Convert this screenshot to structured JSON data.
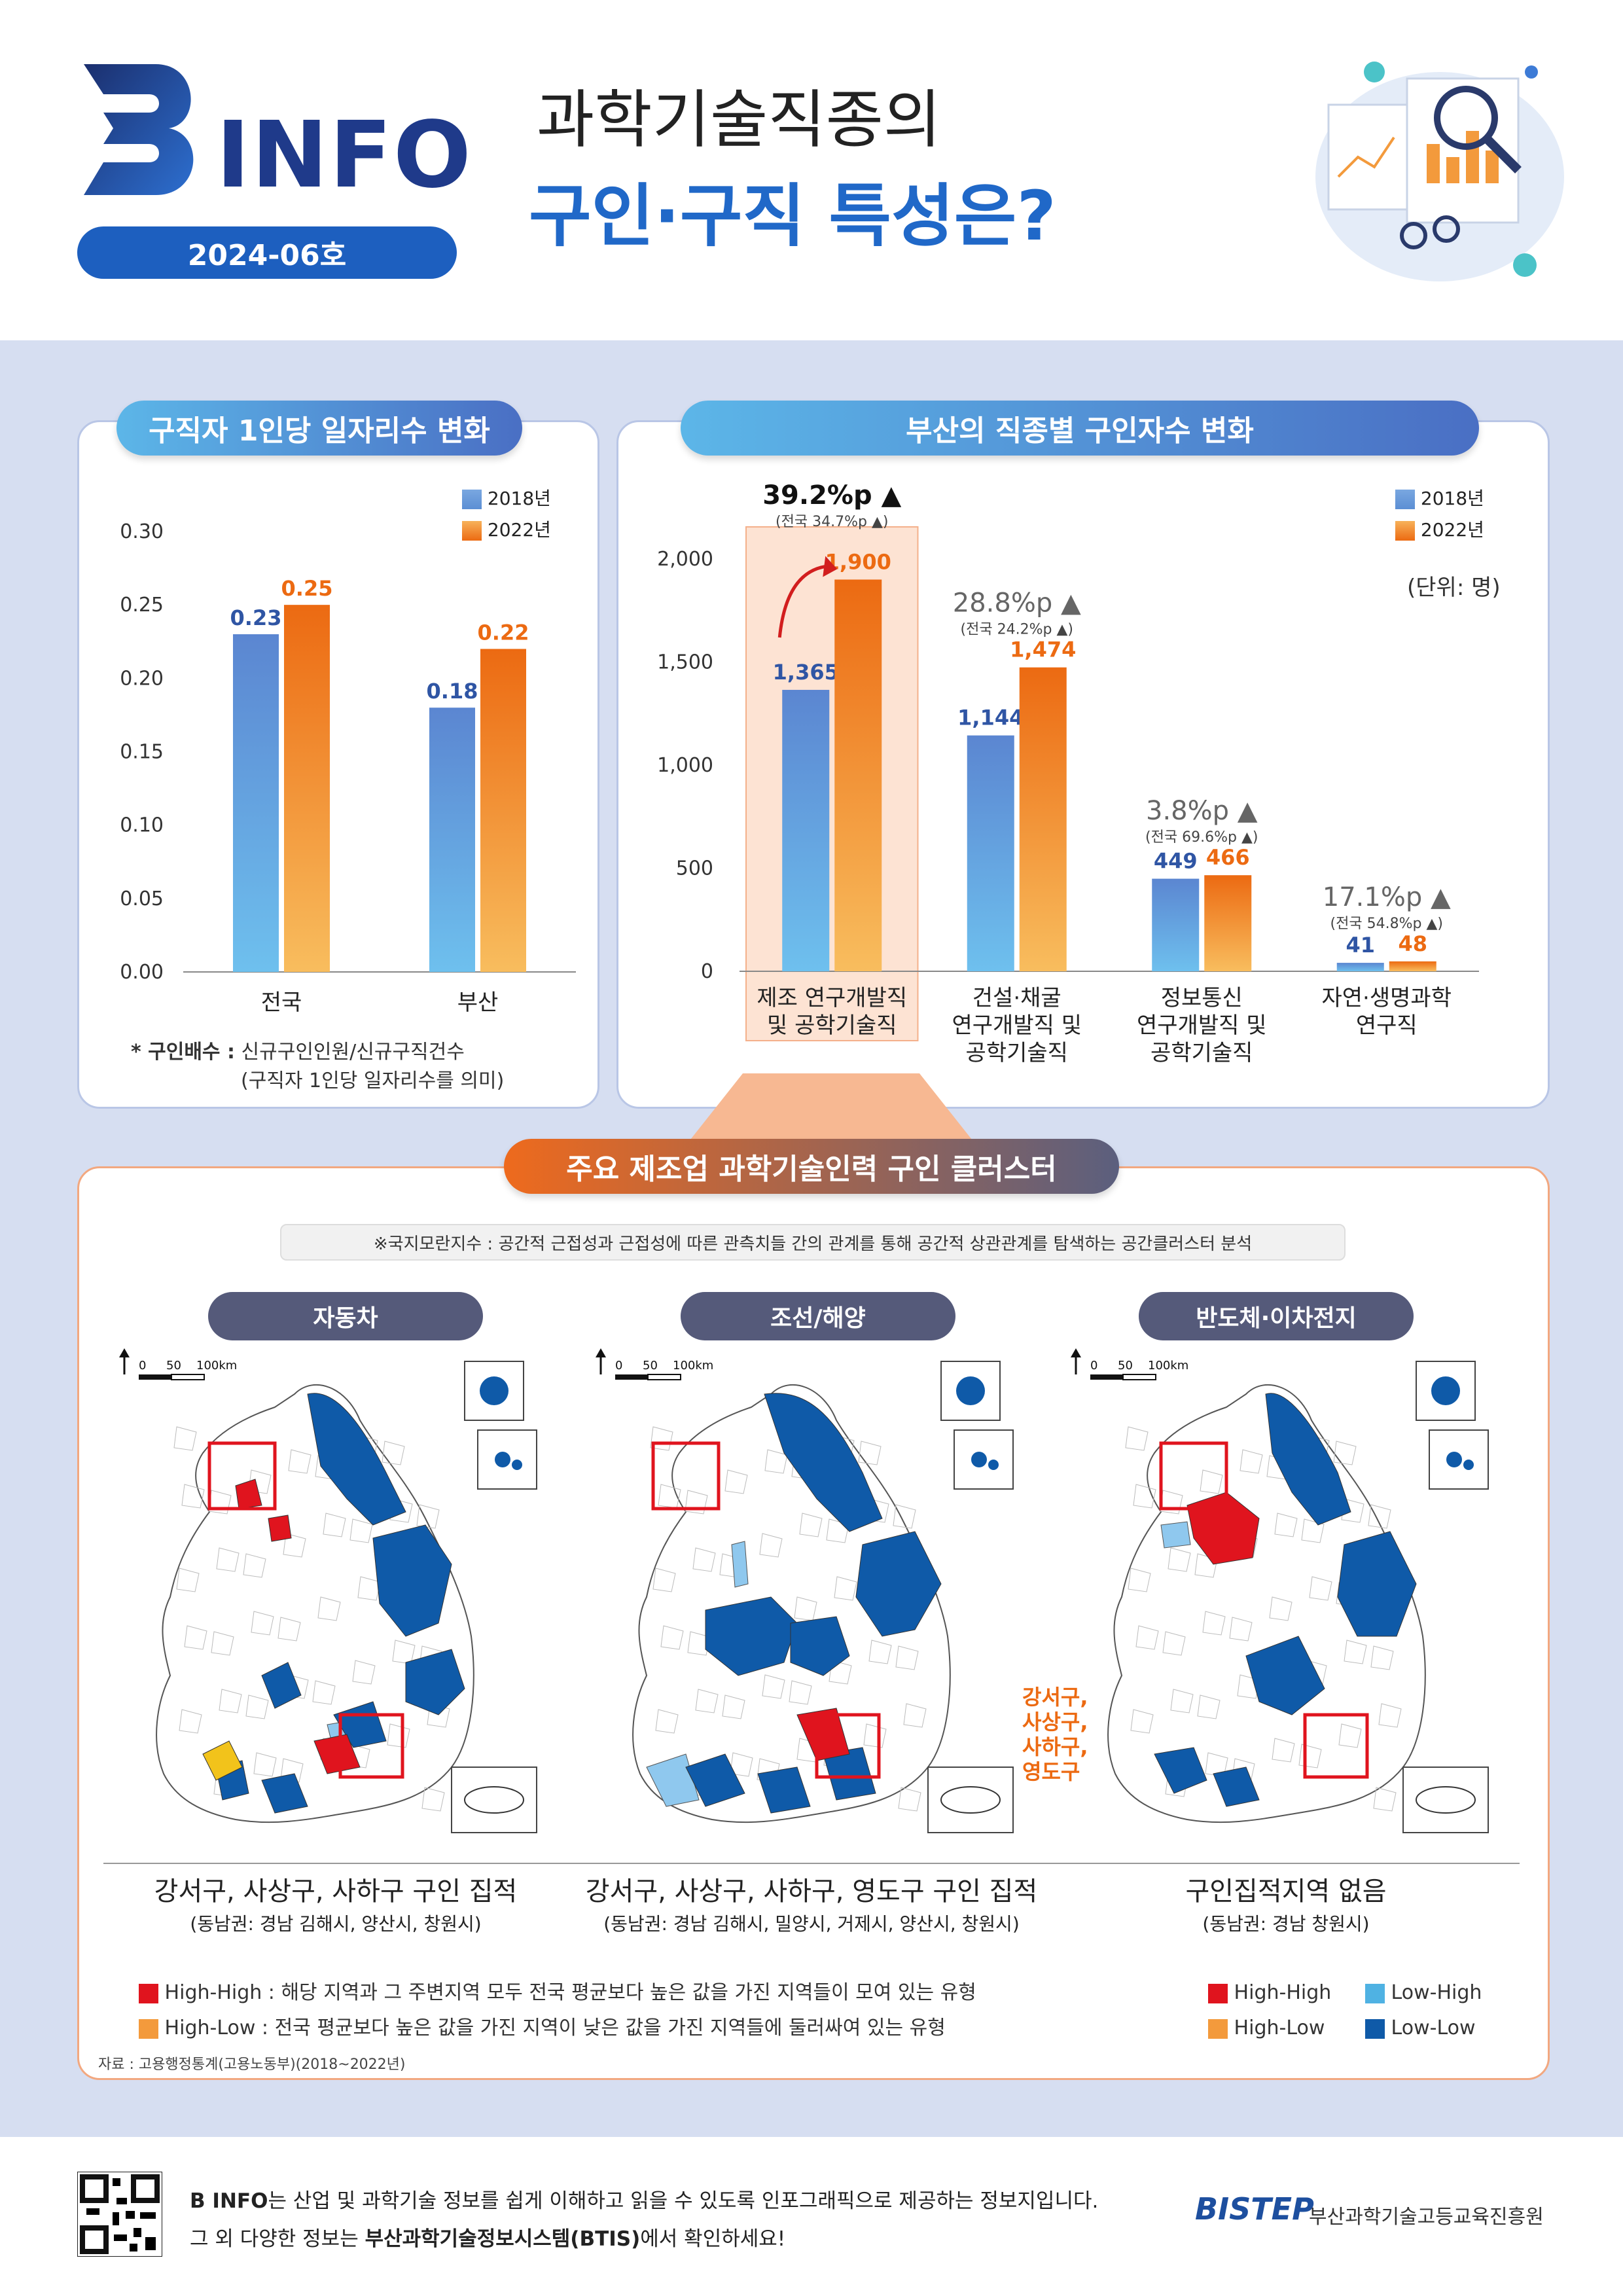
{
  "header": {
    "logo_text": "INFO",
    "logo_letter": "B",
    "issue": "2024-06호",
    "title_line1": "과학기술직종의",
    "title_line2": "구인·구직 특성은?"
  },
  "chart1": {
    "title": "구직자 1인당 일자리수 변화",
    "legend": [
      "2018년",
      "2022년"
    ],
    "note_label": "* 구인배수 :",
    "note_text": "신규구인인원/신규구직건수",
    "note_text2": "(구직자 1인당 일자리수를 의미)"
  },
  "chart2": {
    "title": "부산의 직종별 구인자수 변화",
    "legend": [
      "2018년",
      "2022년"
    ],
    "unit": "(단위: 명)",
    "changes": [
      {
        "main": "39.2%p ▲",
        "sub": "(전국 34.7%p ▲)"
      },
      {
        "main": "28.8%p ▲",
        "sub": "(전국 24.2%p ▲)"
      },
      {
        "main": "3.8%p ▲",
        "sub": "(전국 69.6%p ▲)"
      },
      {
        "main": "17.1%p ▲",
        "sub": "(전국 54.8%p ▲)"
      }
    ],
    "cat_lines": [
      [
        "제조 연구개발직",
        "및 공학기술직"
      ],
      [
        "건설·채굴",
        "연구개발직 및",
        "공학기술직"
      ],
      [
        "정보통신",
        "연구개발직 및",
        "공학기술직"
      ],
      [
        "자연·생명과학",
        "연구직"
      ]
    ]
  },
  "chart_data": [
    {
      "type": "bar",
      "title": "구직자 1인당 일자리수 변화",
      "categories": [
        "전국",
        "부산"
      ],
      "series": [
        {
          "name": "2018년",
          "values": [
            0.23,
            0.18
          ]
        },
        {
          "name": "2022년",
          "values": [
            0.25,
            0.22
          ]
        }
      ],
      "yticks": [
        "0.00",
        "0.05",
        "0.10",
        "0.15",
        "0.20",
        "0.25",
        "0.30"
      ],
      "ylim": [
        0,
        0.3
      ]
    },
    {
      "type": "bar",
      "title": "부산의 직종별 구인자수 변화",
      "categories": [
        "제조 연구개발직 및 공학기술직",
        "건설·채굴 연구개발직 및 공학기술직",
        "정보통신 연구개발직 및 공학기술직",
        "자연·생명과학 연구직"
      ],
      "series": [
        {
          "name": "2018년",
          "values": [
            1365,
            1144,
            449,
            41
          ]
        },
        {
          "name": "2022년",
          "values": [
            1900,
            1474,
            466,
            48
          ]
        }
      ],
      "labels": [
        [
          "1,365",
          "1,144",
          "449",
          "41"
        ],
        [
          "1,900",
          "1,474",
          "466",
          "48"
        ]
      ],
      "yticks": [
        "0",
        "500",
        "1,000",
        "1,500",
        "2,000"
      ],
      "ylim": [
        0,
        2000
      ]
    }
  ],
  "cluster": {
    "title": "주요 제조업 과학기술인력 구인 클러스터",
    "note": "※국지모란지수 : 공간적 근접성과 근접성에 따른 관측치들 간의 관계를 통해 공간적 상관관계를 탐색하는 공간클러스터 분석",
    "scale": [
      "0",
      "50",
      "100km"
    ],
    "maps": [
      {
        "title": "자동차",
        "caption": "강서구, 사상구, 사하구 구인 집적",
        "sub": "(동남권: 경남 김해시, 양산시, 창원시)"
      },
      {
        "title": "조선/해양",
        "caption": "강서구, 사상구, 사하구, 영도구 구인 집적",
        "sub": "(동남권: 경남 김해시, 밀양시, 거제시, 양산시, 창원시)",
        "annot": [
          "강서구,",
          "사상구,",
          "사하구,",
          "영도구"
        ]
      },
      {
        "title": "반도체·이차전지",
        "caption": "구인집적지역 없음",
        "sub": "(동남권: 경남 창원시)"
      }
    ],
    "legend_desc": [
      {
        "label": "High-High",
        "text": "High-High : 해당 지역과 그 주변지역 모두 전국 평균보다 높은 값을 가진 지역들이 모여 있는 유형",
        "color": "#e0141e"
      },
      {
        "label": "High-Low",
        "text": "High-Low : 전국 평균보다 높은 값을 가진 지역이 낮은 값을 가진 지역들에 둘러싸여 있는 유형",
        "color": "#f39a3c"
      }
    ],
    "legend_small": [
      {
        "label": "High-High",
        "color": "#e0141e"
      },
      {
        "label": "Low-High",
        "color": "#4fb2e3"
      },
      {
        "label": "High-Low",
        "color": "#f39a3c"
      },
      {
        "label": "Low-Low",
        "color": "#0f5aa8"
      }
    ],
    "source": "자료 : 고용행정통계(고용노동부)(2018~2022년)"
  },
  "footer": {
    "line1_bold": "B INFO",
    "line1": "는 산업 및 과학기술 정보를 쉽게 이해하고 읽을 수 있도록 인포그래픽으로 제공하는 정보지입니다.",
    "line2a": "그 외 다양한 정보는 ",
    "line2_bold": "부산과학기술정보시스템(BTIS)",
    "line2b": "에서 확인하세요!",
    "org_logo": "BISTEP",
    "org_name": "부산과학기술고등교육진흥원"
  },
  "colors": {
    "blue": "#2f55a4",
    "orange": "#ec6a12",
    "bg": "#d6def1"
  }
}
